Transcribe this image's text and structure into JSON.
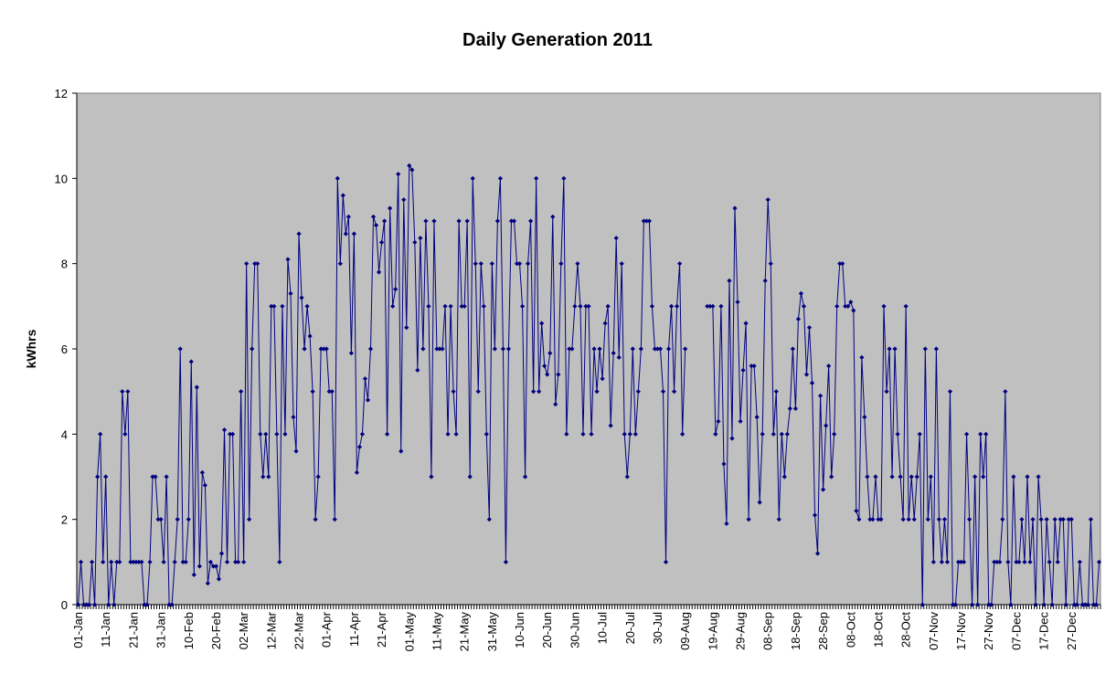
{
  "chart_data": {
    "type": "line",
    "title": "Daily Generation 2011",
    "xlabel": "",
    "ylabel": "kWhrs",
    "ylim": [
      0,
      12
    ],
    "yticks": [
      0,
      2,
      4,
      6,
      8,
      10,
      12
    ],
    "grid": false,
    "legend": "none",
    "x_tick_labels": [
      "01-Jan",
      "11-Jan",
      "21-Jan",
      "31-Jan",
      "10-Feb",
      "20-Feb",
      "02-Mar",
      "12-Mar",
      "22-Mar",
      "01-Apr",
      "11-Apr",
      "21-Apr",
      "01-May",
      "11-May",
      "21-May",
      "31-May",
      "10-Jun",
      "20-Jun",
      "30-Jun",
      "10-Jul",
      "20-Jul",
      "30-Jul",
      "09-Aug",
      "19-Aug",
      "29-Aug",
      "08-Sep",
      "18-Sep",
      "28-Sep",
      "08-Oct",
      "18-Oct",
      "28-Oct",
      "07-Nov",
      "17-Nov",
      "27-Nov",
      "07-Dec",
      "17-Dec",
      "27-Dec"
    ],
    "series": [
      {
        "color": "#000080",
        "values": [
          0,
          1,
          0,
          0,
          0,
          1,
          0,
          3,
          4,
          1,
          3,
          0,
          1,
          0,
          1,
          1,
          5,
          4,
          5,
          1,
          1,
          1,
          1,
          1,
          0,
          0,
          1,
          3,
          3,
          2,
          2,
          1,
          3,
          0,
          0,
          1,
          2,
          6,
          1,
          1,
          2,
          5.7,
          0.7,
          5.1,
          0.9,
          3.1,
          2.8,
          0.5,
          1,
          0.9,
          0.9,
          0.6,
          1.2,
          4.1,
          1,
          4,
          4,
          1,
          1,
          5,
          1,
          8,
          2,
          6,
          8,
          8,
          4,
          3,
          4,
          3,
          7,
          7,
          4,
          1,
          7,
          4,
          8.1,
          7.3,
          4.4,
          3.6,
          8.7,
          7.2,
          6,
          7,
          6.3,
          5,
          2,
          3,
          6,
          6,
          6,
          5,
          5,
          2,
          10,
          8,
          9.6,
          8.7,
          9.1,
          5.9,
          8.7,
          3.1,
          3.7,
          4,
          5.3,
          4.8,
          6,
          9.1,
          8.9,
          7.8,
          8.5,
          9,
          4,
          9.3,
          7,
          7.4,
          10.1,
          3.6,
          9.5,
          6.5,
          10.3,
          10.2,
          8.5,
          5.5,
          8.6,
          6,
          9,
          7,
          3,
          9,
          6,
          6,
          6,
          7,
          4,
          7,
          5,
          4,
          9,
          7,
          7,
          9,
          3,
          10,
          8,
          5,
          8,
          7,
          4,
          2,
          8,
          6,
          9,
          10,
          6,
          1,
          6,
          9,
          9,
          8,
          8,
          7,
          3,
          8,
          9,
          5,
          10,
          5,
          6.6,
          5.6,
          5.4,
          5.9,
          9.1,
          4.7,
          5.4,
          8,
          10,
          4,
          6,
          6,
          7,
          8,
          7,
          4,
          7,
          7,
          4,
          6,
          5,
          6,
          5.3,
          6.6,
          7,
          4.2,
          5.9,
          8.6,
          5.8,
          8,
          4,
          3,
          4,
          6,
          4,
          5,
          6,
          9,
          9,
          9,
          7,
          6,
          6,
          6,
          5,
          1,
          6,
          7,
          5,
          7,
          8,
          4,
          6,
          null,
          null,
          null,
          null,
          null,
          null,
          null,
          7,
          7,
          7,
          4,
          4.3,
          7,
          3.3,
          1.9,
          7.6,
          3.9,
          9.3,
          7.1,
          4.3,
          5.5,
          6.6,
          2,
          5.6,
          5.6,
          4.4,
          2.4,
          4,
          7.6,
          9.5,
          8,
          4,
          5,
          2,
          4,
          3,
          4,
          4.6,
          6,
          4.6,
          6.7,
          7.3,
          7,
          5.4,
          6.5,
          5.2,
          2.1,
          1.2,
          4.9,
          2.7,
          4.2,
          5.6,
          3,
          4,
          7,
          8,
          8,
          7,
          7,
          7.1,
          6.9,
          2.2,
          2,
          5.8,
          4.4,
          3,
          2,
          2,
          3,
          2,
          2,
          7,
          5,
          6,
          3,
          6,
          4,
          3,
          2,
          7,
          2,
          3,
          2,
          3,
          4,
          0,
          6,
          2,
          3,
          1,
          6,
          2,
          1,
          2,
          1,
          5,
          0,
          0,
          1,
          1,
          1,
          4,
          2,
          0,
          3,
          0,
          4,
          3,
          4,
          0,
          0,
          1,
          1,
          1,
          2,
          5,
          1,
          0,
          3,
          1,
          1,
          2,
          1,
          3,
          1,
          2,
          0,
          3,
          2,
          0,
          2,
          1,
          0,
          2,
          1,
          2,
          2,
          0,
          2,
          2,
          0,
          0,
          1,
          0,
          0,
          0,
          2,
          0,
          0,
          1
        ]
      }
    ]
  }
}
